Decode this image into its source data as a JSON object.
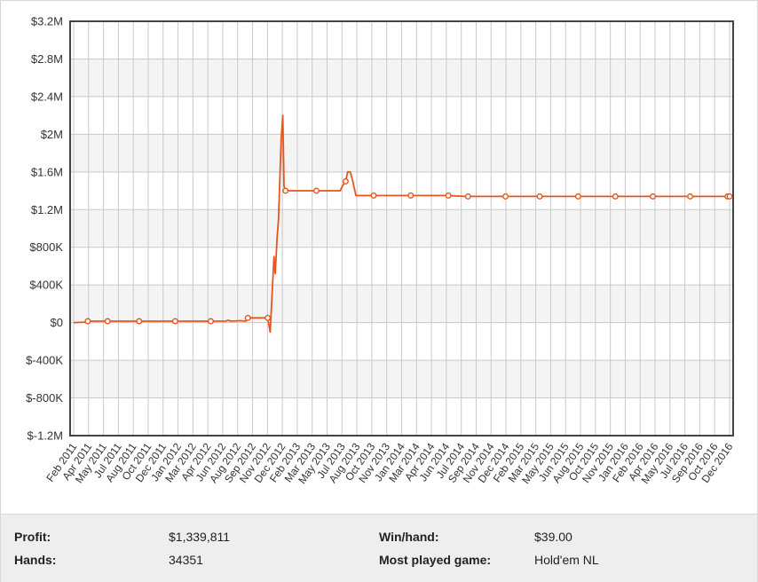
{
  "chart_data": {
    "type": "line",
    "title": "",
    "xlabel": "",
    "ylabel": "",
    "grid": true,
    "ylim": [
      -1200000,
      3200000
    ],
    "y_ticks": [
      {
        "value": 3200000,
        "label": "$3.2M"
      },
      {
        "value": 2800000,
        "label": "$2.8M"
      },
      {
        "value": 2400000,
        "label": "$2.4M"
      },
      {
        "value": 2000000,
        "label": "$2M"
      },
      {
        "value": 1600000,
        "label": "$1.6M"
      },
      {
        "value": 1200000,
        "label": "$1.2M"
      },
      {
        "value": 800000,
        "label": "$800K"
      },
      {
        "value": 400000,
        "label": "$400K"
      },
      {
        "value": 0,
        "label": "$0"
      },
      {
        "value": -400000,
        "label": "$-400K"
      },
      {
        "value": -800000,
        "label": "$-800K"
      },
      {
        "value": -1200000,
        "label": "$-1.2M"
      }
    ],
    "x_ticks": [
      "Feb 2011",
      "Apr 2011",
      "May 2011",
      "Jul 2011",
      "Aug 2011",
      "Oct 2011",
      "Dec 2011",
      "Jan 2012",
      "Mar 2012",
      "Apr 2012",
      "Jun 2012",
      "Aug 2012",
      "Sep 2012",
      "Nov 2012",
      "Dec 2012",
      "Feb 2013",
      "Mar 2013",
      "May 2013",
      "Jul 2013",
      "Aug 2013",
      "Oct 2013",
      "Nov 2013",
      "Jan 2014",
      "Mar 2014",
      "Apr 2014",
      "Jun 2014",
      "Jul 2014",
      "Sep 2014",
      "Nov 2014",
      "Dec 2014",
      "Feb 2015",
      "Mar 2015",
      "May 2015",
      "Jun 2015",
      "Aug 2015",
      "Oct 2015",
      "Nov 2015",
      "Jan 2016",
      "Feb 2016",
      "Apr 2016",
      "May 2016",
      "Jul 2016",
      "Sep 2016",
      "Oct 2016",
      "Dec 2016"
    ],
    "series": [
      {
        "color": "#e8561b",
        "points": [
          {
            "x": "2011-01-15",
            "y": 0
          },
          {
            "x": "2011-03-20",
            "y": 5000
          },
          {
            "x": "2011-03-25",
            "y": 15000,
            "marker": true
          },
          {
            "x": "2011-06-30",
            "y": 15000,
            "marker": true
          },
          {
            "x": "2011-12-01",
            "y": 15000,
            "marker": true
          },
          {
            "x": "2012-05-25",
            "y": 15000,
            "marker": true
          },
          {
            "x": "2012-11-15",
            "y": 15000,
            "marker": true
          },
          {
            "x": "2013-01-25",
            "y": 15000
          },
          {
            "x": "2013-02-10",
            "y": 25000
          },
          {
            "x": "2013-02-20",
            "y": 15000
          },
          {
            "x": "2013-04-10",
            "y": 20000
          },
          {
            "x": "2013-05-05",
            "y": 15000
          },
          {
            "x": "2013-05-15",
            "y": 50000,
            "marker": true
          },
          {
            "x": "2013-08-20",
            "y": 50000,
            "marker": true
          },
          {
            "x": "2013-09-01",
            "y": -100000
          },
          {
            "x": "2013-09-20",
            "y": 700000
          },
          {
            "x": "2013-09-26",
            "y": 520000
          },
          {
            "x": "2013-10-05",
            "y": 900000
          },
          {
            "x": "2013-10-12",
            "y": 1100000
          },
          {
            "x": "2013-10-25",
            "y": 1950000
          },
          {
            "x": "2013-11-02",
            "y": 2200000
          },
          {
            "x": "2013-11-08",
            "y": 1450000
          },
          {
            "x": "2013-11-15",
            "y": 1400000,
            "marker": true
          },
          {
            "x": "2014-04-15",
            "y": 1400000,
            "marker": true
          },
          {
            "x": "2014-08-10",
            "y": 1400000
          },
          {
            "x": "2014-08-20",
            "y": 1450000
          },
          {
            "x": "2014-09-05",
            "y": 1500000,
            "marker": true
          },
          {
            "x": "2014-09-15",
            "y": 1600000
          },
          {
            "x": "2014-09-28",
            "y": 1600000
          },
          {
            "x": "2014-10-10",
            "y": 1500000
          },
          {
            "x": "2014-10-25",
            "y": 1350000
          },
          {
            "x": "2015-01-20",
            "y": 1350000,
            "marker": true
          },
          {
            "x": "2015-07-20",
            "y": 1350000,
            "marker": true
          },
          {
            "x": "2016-01-20",
            "y": 1350000,
            "marker": true
          },
          {
            "x": "2016-04-10",
            "y": 1340000
          },
          {
            "x": "2016-04-25",
            "y": 1340000,
            "marker": true
          },
          {
            "x": "2016-10-25",
            "y": 1340000,
            "marker": true
          },
          {
            "x": "2017-04-10",
            "y": 1340000,
            "marker": true
          },
          {
            "x": "2017-10-15",
            "y": 1340000,
            "marker": true
          },
          {
            "x": "2018-04-15",
            "y": 1340000,
            "marker": true
          },
          {
            "x": "2018-10-15",
            "y": 1340000,
            "marker": true
          },
          {
            "x": "2019-04-15",
            "y": 1340000,
            "marker": true
          },
          {
            "x": "2019-10-15",
            "y": 1340000,
            "marker": true
          },
          {
            "x": "2019-10-25",
            "y": 1340000,
            "marker": true
          }
        ]
      }
    ]
  },
  "stats": {
    "profit_label": "Profit:",
    "profit_value": "$1,339,811",
    "hands_label": "Hands:",
    "hands_value": "34351",
    "winhand_label": "Win/hand:",
    "winhand_value": "$39.00",
    "most_played_label": "Most played game:",
    "most_played_value": "Hold'em NL"
  }
}
